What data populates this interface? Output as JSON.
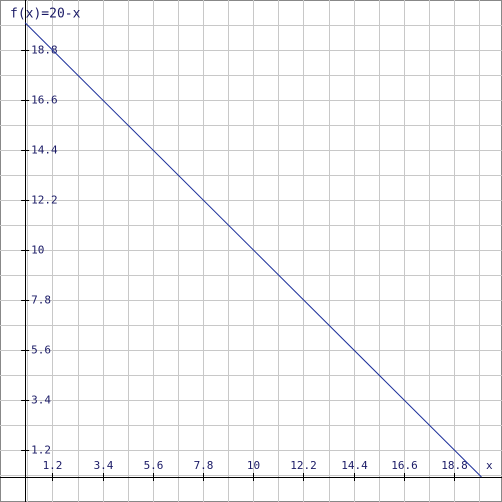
{
  "chart_data": {
    "type": "line",
    "title": "f(x)=20-x",
    "x_label": "x",
    "xlim": [
      -1.1,
      20.9
    ],
    "ylim": [
      -1.1,
      21
    ],
    "xticks": [
      1.2,
      3.4,
      5.6,
      7.8,
      10,
      12.2,
      14.4,
      16.6,
      18.8
    ],
    "yticks": [
      1.2,
      3.4,
      5.6,
      7.8,
      10,
      12.2,
      14.4,
      16.6,
      18.8
    ],
    "x_minor_ticks": [
      0.1,
      2.3,
      4.5,
      6.7,
      8.9,
      11.1,
      13.3,
      15.5,
      17.7,
      19.9
    ],
    "y_minor_ticks": [
      0.1,
      2.3,
      4.5,
      6.7,
      8.9,
      11.1,
      13.3,
      15.5,
      17.7,
      19.9
    ],
    "grid": true,
    "series": [
      {
        "name": "f(x)=20-x",
        "color": "#1c2f9a",
        "x": [
          0,
          20
        ],
        "values": [
          20,
          0
        ]
      }
    ]
  }
}
